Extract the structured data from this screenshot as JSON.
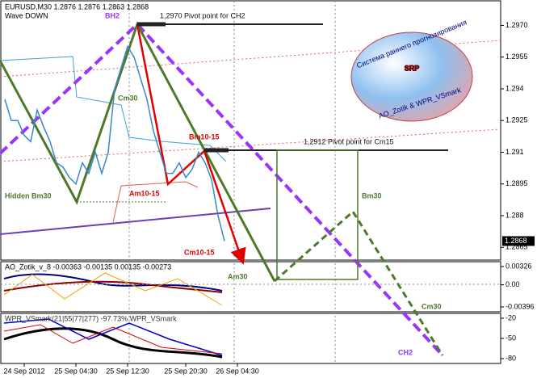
{
  "chart_data": {
    "type": "line",
    "title": "EURUSD,M30  1.2876 1.2876 1.2863 1.2868",
    "subtitle": "Wave DOWN",
    "categories": [
      null,
      null,
      null,
      "24 Sep 2012",
      null,
      null,
      null,
      null,
      null,
      null,
      null,
      "25 Sep 04:30",
      null,
      null,
      null,
      null,
      null,
      null,
      null,
      "25 Sep 12:30",
      null,
      null,
      null,
      null,
      null,
      null,
      null,
      null,
      "25 Sep 20:30",
      null,
      null,
      null,
      null,
      null,
      null,
      null,
      "26 Sep 04:30"
    ],
    "series": [
      {
        "name": "EURUSD",
        "color": "#3a86c8",
        "values": [
          1.2935,
          1.2925,
          1.2925,
          1.2918,
          1.2915,
          1.293,
          1.2922,
          1.2915,
          1.2905,
          1.2903,
          1.2898,
          1.2895,
          1.2905,
          1.29,
          1.291,
          1.29,
          1.291,
          1.294,
          1.295,
          1.296,
          1.2955,
          1.2945,
          1.2935,
          1.292,
          1.291,
          1.29,
          1.29,
          1.2905,
          1.2898,
          1.2902,
          1.291,
          1.2905,
          1.2897,
          1.288,
          1.2868,
          null,
          null
        ]
      }
    ],
    "ylim": [
      1.2859,
      1.2982
    ],
    "yticks": [
      {
        "value": 1.297,
        "label": "1.2970"
      },
      1.2955,
      1.294,
      1.2925,
      1.291,
      1.2895,
      1.288,
      1.2865
    ],
    "last_price": {
      "value": 1.2868,
      "label": "1.2868"
    },
    "annotations": [
      "BH2",
      "1,2970 Pivot point for CH2",
      "Cm30",
      "Bm10-15",
      "Am10-15",
      "Hidden Bm30",
      "Cm10-15",
      "1,2912 Pivot point for Cm15",
      "Bm30",
      "Am30",
      "Cm30",
      "CH2"
    ],
    "logo": {
      "text": "SRP",
      "arc": "Система раннего прогнозирования",
      "caption": "AO_Zotik & WPR_VSmark"
    },
    "panels": [
      {
        "title": "AO_Zotik_v_8 -0.00363 -0.00135 0.00135 -0.00273",
        "yticks": [
          0.00326,
          {
            "value": 0,
            "label": "0.00"
          },
          -0.00396
        ]
      },
      {
        "title": "WPR_VSmark(21|55|77|277) -97.73%  WPR_VSmark",
        "yticks": [
          -20,
          -50,
          -80
        ]
      }
    ]
  }
}
